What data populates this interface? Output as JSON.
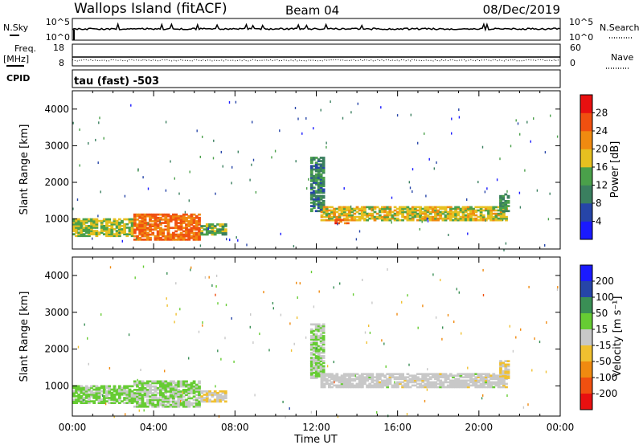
{
  "header": {
    "station": "Wallops Island (fitACF)",
    "beam": "Beam 04",
    "date": "08/Dec/2019"
  },
  "status_panels": {
    "nsky_label": "N.Sky",
    "nsky_ticks": [
      "10^5",
      "10^0"
    ],
    "nsearch_label": "N.Search",
    "nsearch_ticks": [
      "10^5",
      "10^0"
    ],
    "freq_label": "Freq.",
    "freq_unit": "[MHz]",
    "freq_ticks": [
      "18",
      "8"
    ],
    "nave_label": "Nave",
    "nave_ticks": [
      "60",
      "0"
    ],
    "cpid_label": "CPID",
    "cpid_text": "tau (fast) -503"
  },
  "chart_data": [
    {
      "type": "heatmap",
      "panel": "power",
      "ylabel": "Slant Range [km]",
      "yticks": [
        "1000",
        "2000",
        "3000",
        "4000"
      ],
      "ylim": [
        180,
        4500
      ],
      "xlim": [
        0,
        24
      ],
      "xticks": [
        "00:00",
        "04:00",
        "08:00",
        "12:00",
        "16:00",
        "20:00",
        "00:00"
      ],
      "xlabel": "Time UT",
      "colorbar_label": "Power [dB]",
      "colorbar_ticks": [
        "4",
        "8",
        "12",
        "16",
        "20",
        "24",
        "28"
      ],
      "colorbar_range": [
        0,
        32
      ],
      "colors": [
        "#1a1aff",
        "#2645a8",
        "#3a7f5f",
        "#4aa04a",
        "#e6c020",
        "#f08a10",
        "#f05010",
        "#e81010"
      ],
      "echo_regions": [
        {
          "t0": 0.0,
          "t1": 3.0,
          "r0": 520,
          "r1": 1020,
          "level": 16
        },
        {
          "t0": 3.0,
          "t1": 6.3,
          "r0": 420,
          "r1": 1150,
          "level": 24
        },
        {
          "t0": 6.3,
          "t1": 7.6,
          "r0": 560,
          "r1": 880,
          "level": 14
        },
        {
          "t0": 11.7,
          "t1": 12.4,
          "r0": 1200,
          "r1": 2700,
          "level": 10
        },
        {
          "t0": 12.2,
          "t1": 21.4,
          "r0": 950,
          "r1": 1350,
          "level": 18
        },
        {
          "t0": 12.9,
          "t1": 13.6,
          "r0": 870,
          "r1": 1000,
          "level": 26
        },
        {
          "t0": 21.0,
          "t1": 21.5,
          "r0": 1200,
          "r1": 1700,
          "level": 12
        }
      ]
    },
    {
      "type": "heatmap",
      "panel": "velocity",
      "ylabel": "Slant Range [km]",
      "yticks": [
        "1000",
        "2000",
        "3000",
        "4000"
      ],
      "ylim": [
        180,
        4500
      ],
      "xlim": [
        0,
        24
      ],
      "xticks": [
        "00:00",
        "04:00",
        "08:00",
        "12:00",
        "16:00",
        "20:00",
        "00:00"
      ],
      "xlabel": "Time UT",
      "colorbar_label": "Velocity [m s⁻¹]",
      "colorbar_ticks": [
        "200",
        "100",
        "50",
        "15",
        "-15",
        "-50",
        "-100",
        "-200"
      ],
      "colorbar_range": [
        -250,
        250
      ],
      "colors": [
        "#e81010",
        "#f05010",
        "#f08a10",
        "#f0c030",
        "#c8c8c8",
        "#66cc33",
        "#3a8f55",
        "#2645a8",
        "#1a1aff"
      ],
      "echo_regions": [
        {
          "t0": 0.0,
          "t1": 3.0,
          "r0": 520,
          "r1": 1020,
          "level": 40
        },
        {
          "t0": 3.0,
          "t1": 6.3,
          "r0": 420,
          "r1": 1150,
          "level": 30
        },
        {
          "t0": 6.3,
          "t1": 7.6,
          "r0": 560,
          "r1": 880,
          "level": -20
        },
        {
          "t0": 11.7,
          "t1": 12.4,
          "r0": 1200,
          "r1": 2700,
          "level": 30
        },
        {
          "t0": 12.2,
          "t1": 21.4,
          "r0": 950,
          "r1": 1350,
          "level": 0
        },
        {
          "t0": 21.0,
          "t1": 21.5,
          "r0": 1200,
          "r1": 1700,
          "level": -20
        }
      ]
    }
  ]
}
